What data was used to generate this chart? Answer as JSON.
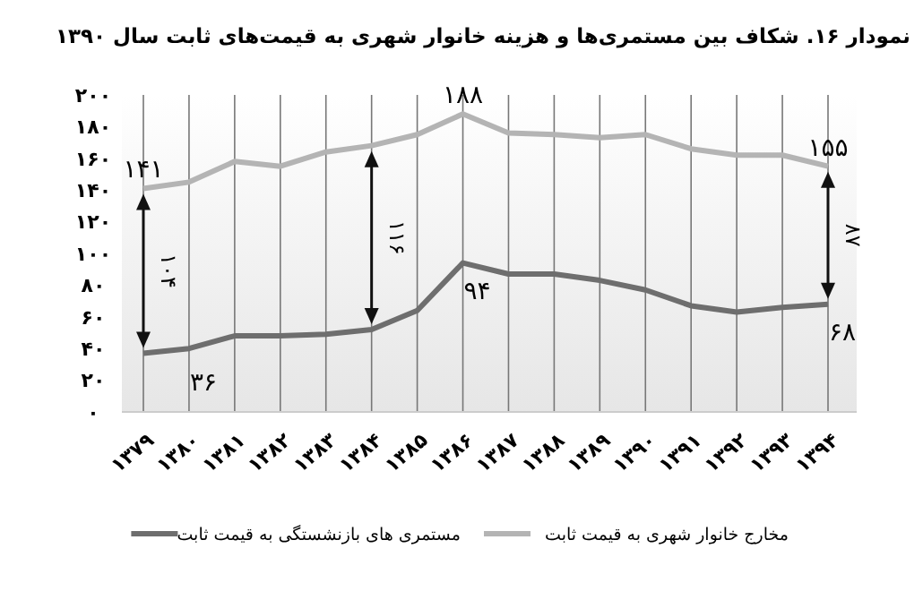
{
  "chart_data": {
    "type": "line",
    "title": "نمودار ۱۶. شکاف بین مستمری‌ها و هزینه خانوار شهری به قیمت‌های ثابت سال ۱۳۹۰",
    "categories": [
      "۱۳۷۹",
      "۱۳۸۰",
      "۱۳۸۱",
      "۱۳۸۲",
      "۱۳۸۳",
      "۱۳۸۴",
      "۱۳۸۵",
      "۱۳۸۶",
      "۱۳۸۷",
      "۱۳۸۸",
      "۱۳۸۹",
      "۱۳۹۰",
      "۱۳۹۱",
      "۱۳۹۲",
      "۱۳۹۳",
      "۱۳۹۴"
    ],
    "series": [
      {
        "name": "مخارج خانوار شهری به قیمت ثابت",
        "color": "#b4b4b4",
        "values": [
          141,
          145,
          158,
          155,
          164,
          168,
          175,
          188,
          176,
          175,
          173,
          175,
          166,
          162,
          162,
          155
        ]
      },
      {
        "name": "مستمری های بازنشستگی به قیمت ثابت",
        "color": "#6e6e6e",
        "values": [
          37,
          40,
          48,
          48,
          49,
          52,
          64,
          94,
          87,
          87,
          83,
          77,
          67,
          63,
          66,
          68
        ]
      }
    ],
    "ylim": [
      0,
      200
    ],
    "yticks": [
      {
        "value": 0,
        "label": "۰"
      },
      {
        "value": 20,
        "label": "۲۰"
      },
      {
        "value": 40,
        "label": "۴۰"
      },
      {
        "value": 60,
        "label": "۶۰"
      },
      {
        "value": 80,
        "label": "۸۰"
      },
      {
        "value": 100,
        "label": "۱۰۰"
      },
      {
        "value": 120,
        "label": "۱۲۰"
      },
      {
        "value": 140,
        "label": "۱۴۰"
      },
      {
        "value": 160,
        "label": "۱۶۰"
      },
      {
        "value": 180,
        "label": "۱۸۰"
      },
      {
        "value": 200,
        "label": "۲۰۰"
      }
    ],
    "grid": "x",
    "legend": "bottom",
    "marker": "none",
    "line_style": "solid",
    "annotations": [
      {
        "text": "۱۴۱",
        "x": "۱۳۷۹",
        "y": 141
      },
      {
        "text": "۳۶",
        "x": "۱۳۸۰",
        "y": 36
      },
      "۱۰۴",
      "۱۱۶",
      {
        "text": "۱۸۸",
        "x": "۱۳۸۶",
        "y": 188
      },
      {
        "text": "۹۴",
        "x": "۱۳۸۶",
        "y": 94
      },
      {
        "text": "۶۸",
        "x": "۱۳۹۴",
        "y": 68
      },
      {
        "text": "۱۵۵",
        "x": "۱۳۹۴",
        "y": 155
      },
      "۸۷"
    ]
  }
}
